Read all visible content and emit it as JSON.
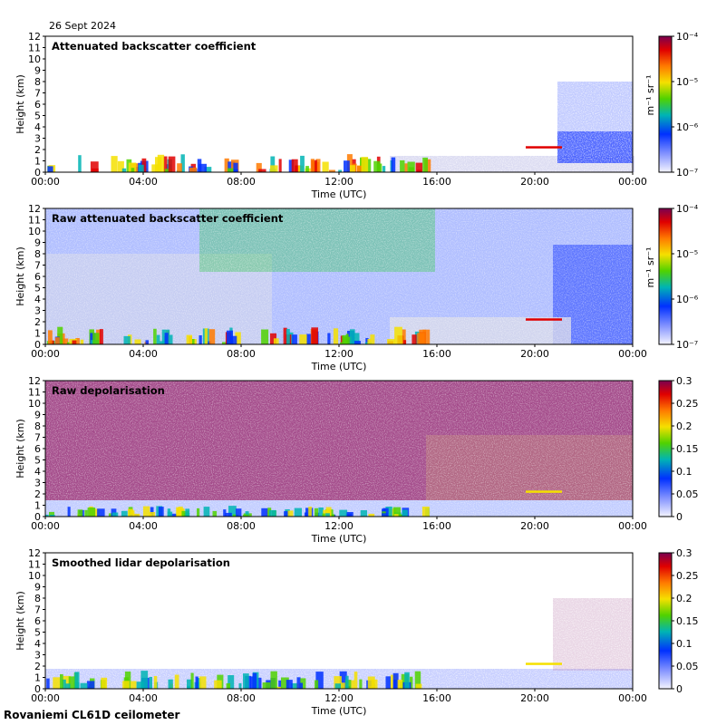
{
  "date": "26 Sept 2024",
  "footer": "Rovaniemi CL61D ceilometer",
  "chart_data": [
    {
      "type": "heatmap",
      "title": "Attenuated backscatter coefficient",
      "xlabel": "Time (UTC)",
      "ylabel": "Height (km)",
      "x_ticks": [
        "00:00",
        "04:00",
        "08:00",
        "12:00",
        "16:00",
        "20:00",
        "00:00"
      ],
      "y_ticks": [
        "0",
        "1",
        "2",
        "3",
        "4",
        "5",
        "6",
        "7",
        "8",
        "9",
        "10",
        "11",
        "12"
      ],
      "ylim": [
        0,
        12
      ],
      "colorbar": {
        "scale": "log",
        "ticks": [
          "10⁻⁴",
          "10⁻⁵",
          "10⁻⁶",
          "10⁻⁷"
        ],
        "unit": "m⁻¹ sr⁻¹"
      }
    },
    {
      "type": "heatmap",
      "title": "Raw attenuated backscatter coefficient",
      "xlabel": "Time (UTC)",
      "ylabel": "Height (km)",
      "x_ticks": [
        "00:00",
        "04:00",
        "08:00",
        "12:00",
        "16:00",
        "20:00",
        "00:00"
      ],
      "y_ticks": [
        "0",
        "1",
        "2",
        "3",
        "4",
        "5",
        "6",
        "7",
        "8",
        "9",
        "10",
        "11",
        "12"
      ],
      "ylim": [
        0,
        12
      ],
      "colorbar": {
        "scale": "log",
        "ticks": [
          "10⁻⁴",
          "10⁻⁵",
          "10⁻⁶",
          "10⁻⁷"
        ],
        "unit": "m⁻¹ sr⁻¹"
      }
    },
    {
      "type": "heatmap",
      "title": "Raw depolarisation",
      "xlabel": "Time (UTC)",
      "ylabel": "Height (km)",
      "x_ticks": [
        "00:00",
        "04:00",
        "08:00",
        "12:00",
        "16:00",
        "20:00",
        "00:00"
      ],
      "y_ticks": [
        "0",
        "1",
        "2",
        "3",
        "4",
        "5",
        "6",
        "7",
        "8",
        "9",
        "10",
        "11",
        "12"
      ],
      "ylim": [
        0,
        12
      ],
      "colorbar": {
        "scale": "linear",
        "ticks": [
          "0.3",
          "0.25",
          "0.2",
          "0.15",
          "0.1",
          "0.05",
          "0"
        ],
        "unit": ""
      }
    },
    {
      "type": "heatmap",
      "title": "Smoothed lidar depolarisation",
      "xlabel": "Time (UTC)",
      "ylabel": "Height (km)",
      "x_ticks": [
        "00:00",
        "04:00",
        "08:00",
        "12:00",
        "16:00",
        "20:00",
        "00:00"
      ],
      "y_ticks": [
        "0",
        "1",
        "2",
        "3",
        "4",
        "5",
        "6",
        "7",
        "8",
        "9",
        "10",
        "11",
        "12"
      ],
      "ylim": [
        0,
        12
      ],
      "colorbar": {
        "scale": "linear",
        "ticks": [
          "0.3",
          "0.25",
          "0.2",
          "0.15",
          "0.1",
          "0.05",
          "0"
        ],
        "unit": ""
      }
    }
  ]
}
